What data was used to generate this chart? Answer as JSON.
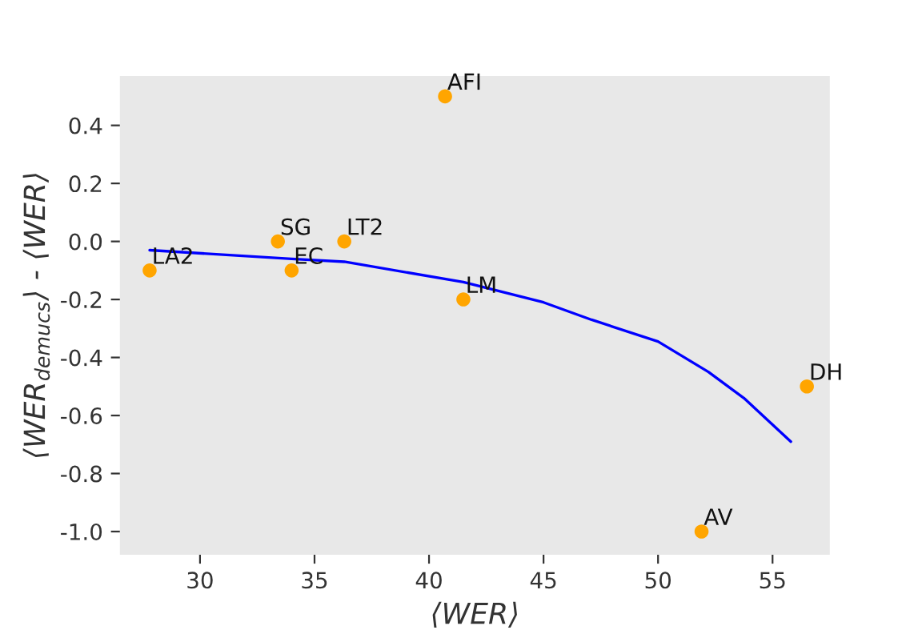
{
  "chart_data": {
    "type": "scatter",
    "xlabel": "⟨WER⟩",
    "ylabel": "⟨WER$_{demucs}$⟩ - ⟨WER⟩",
    "xlim": [
      26.5,
      57.5
    ],
    "ylim": [
      -1.08,
      0.57
    ],
    "xticks": [
      30,
      35,
      40,
      45,
      50,
      55
    ],
    "yticks": [
      {
        "value": 0.4,
        "label": "0.4"
      },
      {
        "value": 0.2,
        "label": "0.2"
      },
      {
        "value": 0.0,
        "label": "0.0"
      },
      {
        "value": -0.2,
        "label": "-0.2"
      },
      {
        "value": -0.4,
        "label": "-0.4"
      },
      {
        "value": -0.6,
        "label": "-0.6"
      },
      {
        "value": -0.8,
        "label": "-0.8"
      },
      {
        "value": -1.0,
        "label": "-1.0"
      }
    ],
    "grid": false,
    "series": [
      {
        "color": "#ffa500",
        "marker": "circle",
        "x": [
          27.8,
          33.4,
          34.0,
          36.3,
          40.7,
          41.5,
          51.9,
          56.5
        ],
        "values": [
          -0.1,
          0.0,
          -0.1,
          0.0,
          0.5,
          -0.2,
          -1.0,
          -0.5
        ]
      },
      {
        "type": "line",
        "color": "#0000ff",
        "marker": "none",
        "x": [
          27.8,
          34.0,
          36.3,
          41.5,
          45.0,
          47.1,
          50.0,
          52.2,
          53.75,
          55.8
        ],
        "values": [
          -0.03,
          -0.06,
          -0.07,
          -0.14,
          -0.21,
          -0.27,
          -0.345,
          -0.45,
          -0.54,
          -0.69
        ]
      }
    ],
    "annotations": [
      {
        "text": "LA2",
        "x": 27.8,
        "y": -0.1
      },
      {
        "text": "SG",
        "x": 33.4,
        "y": 0.0
      },
      {
        "text": "EC",
        "x": 34.0,
        "y": -0.1
      },
      {
        "text": "LT2",
        "x": 36.3,
        "y": 0.0
      },
      {
        "text": "AFI",
        "x": 40.7,
        "y": 0.5
      },
      {
        "text": "LM",
        "x": 41.5,
        "y": -0.2
      },
      {
        "text": "AV",
        "x": 51.9,
        "y": -1.0
      },
      {
        "text": "DH",
        "x": 56.5,
        "y": -0.5
      }
    ]
  }
}
